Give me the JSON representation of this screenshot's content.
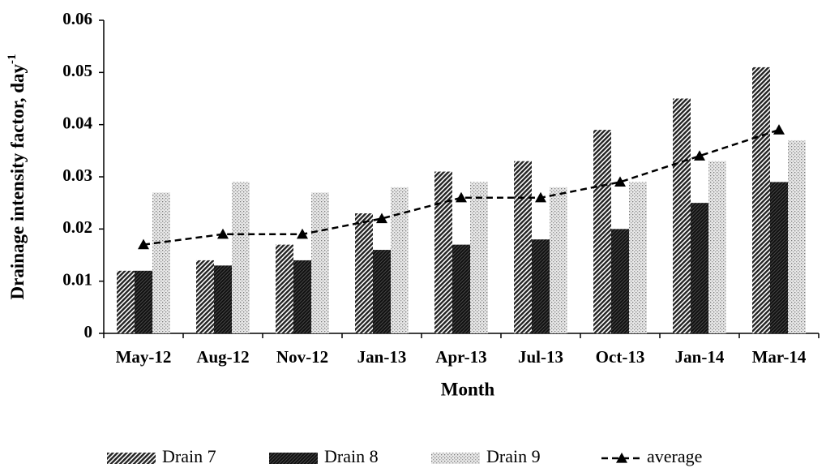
{
  "chart_data": {
    "type": "bar",
    "ylabel": "Drainage intensity factor, day",
    "ylabel_exponent": "-1",
    "xlabel": "Month",
    "categories": [
      "May-12",
      "Aug-12",
      "Nov-12",
      "Jan-13",
      "Apr-13",
      "Jul-13",
      "Oct-13",
      "Jan-14",
      "Mar-14"
    ],
    "series": [
      {
        "name": "Drain 7",
        "type": "bar",
        "color": "#333333",
        "pattern": "diagonal",
        "values": [
          0.012,
          0.014,
          0.017,
          0.023,
          0.031,
          0.033,
          0.039,
          0.045,
          0.051
        ]
      },
      {
        "name": "Drain 8",
        "type": "bar",
        "color": "#111111",
        "pattern": "dense",
        "values": [
          0.012,
          0.013,
          0.014,
          0.016,
          0.017,
          0.018,
          0.02,
          0.025,
          0.029
        ]
      },
      {
        "name": "Drain 9",
        "type": "bar",
        "color": "#777777",
        "pattern": "dots",
        "values": [
          0.027,
          0.029,
          0.027,
          0.028,
          0.029,
          0.028,
          0.029,
          0.033,
          0.037
        ]
      },
      {
        "name": "average",
        "type": "line",
        "color": "#000000",
        "values": [
          0.017,
          0.019,
          0.019,
          0.022,
          0.026,
          0.026,
          0.029,
          0.034,
          0.039
        ]
      }
    ],
    "ylim": [
      0,
      0.06
    ],
    "yticks": [
      0,
      0.01,
      0.02,
      0.03,
      0.04,
      0.05,
      0.06
    ],
    "grid": false,
    "legend": "bottom"
  }
}
